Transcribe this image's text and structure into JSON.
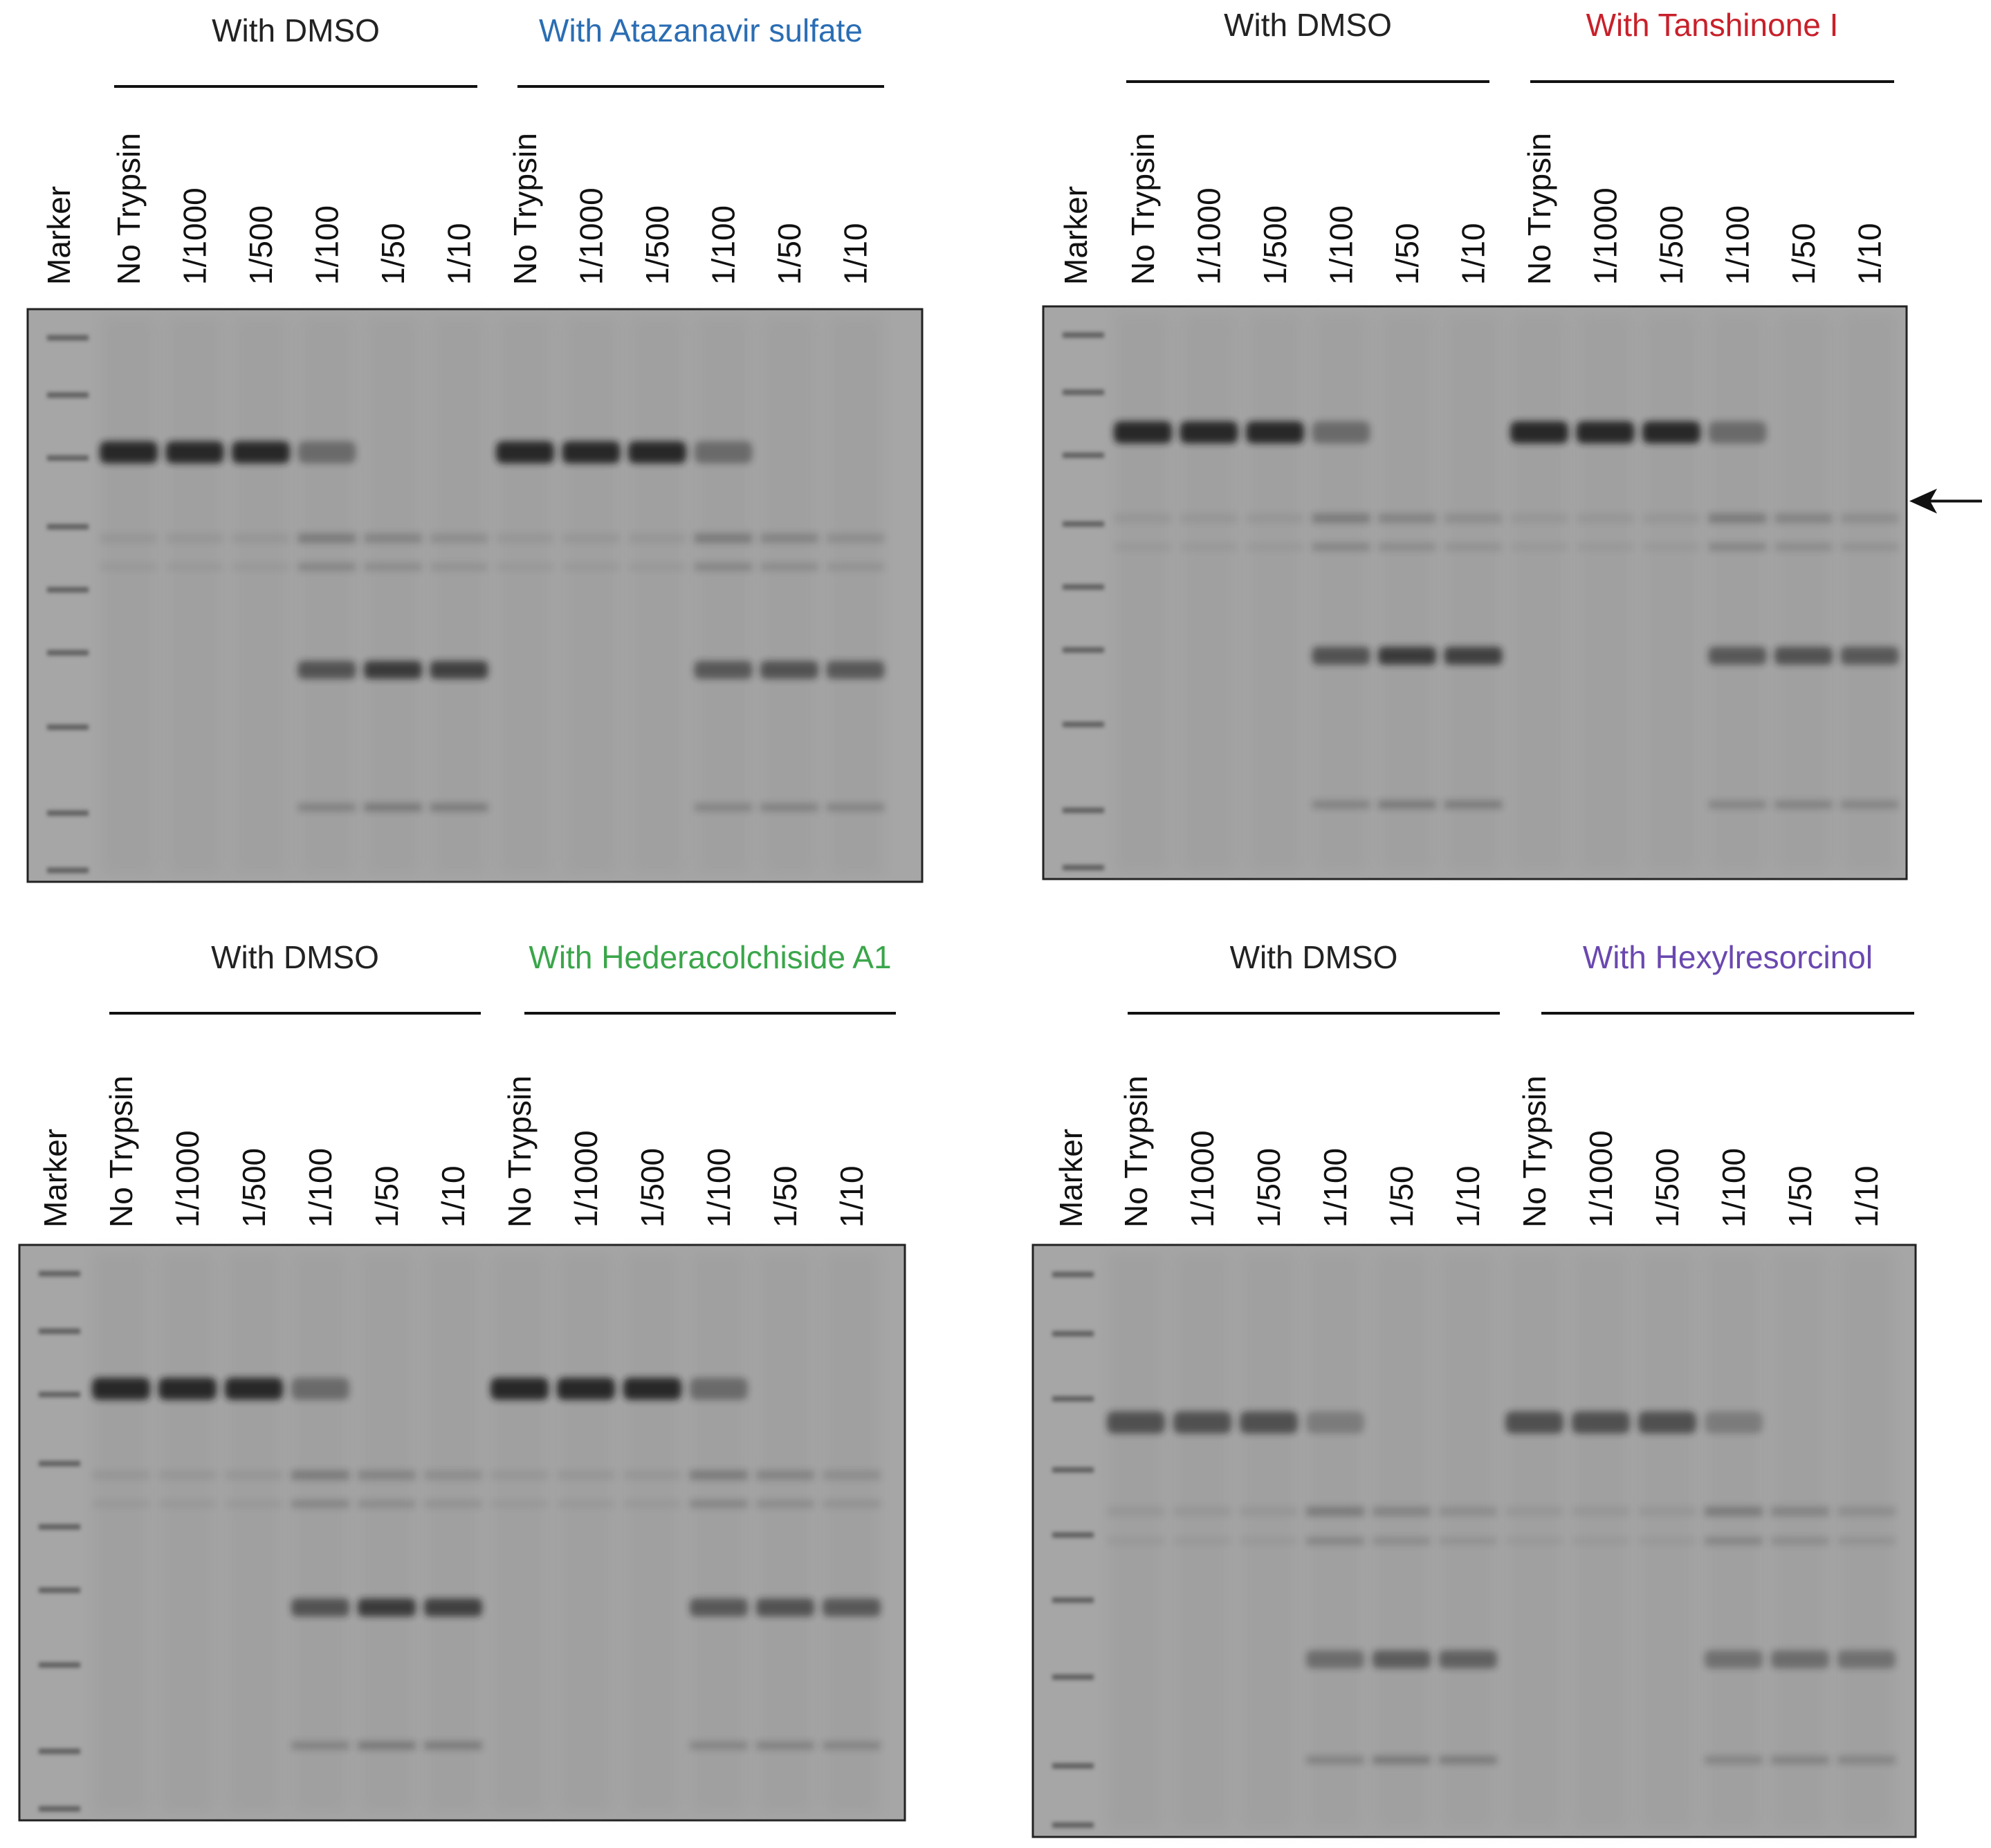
{
  "lane_labels": [
    "Marker",
    "No Trypsin",
    "1/1000",
    "1/500",
    "1/100",
    "1/50",
    "1/10",
    "No Trypsin",
    "1/1000",
    "1/500",
    "1/100",
    "1/50",
    "1/10"
  ],
  "colors": {
    "black": "#222222",
    "blue": "#2a6db4",
    "red": "#c8202a",
    "green": "#3aa64a",
    "purple": "#6a48b0",
    "gel_bg": "#a6a6a6",
    "band": "#1c1c1c"
  },
  "panels": [
    {
      "control_label": "With DMSO",
      "compound_label": "With  Atazanavir sulfate",
      "compound_color": "#2a6db4",
      "arrow": false
    },
    {
      "control_label": "With DMSO",
      "compound_label": "With Tanshinone I",
      "compound_color": "#c8202a",
      "arrow": true
    },
    {
      "control_label": "With DMSO",
      "compound_label": "With  Hederacolchiside A1",
      "compound_color": "#3aa64a",
      "arrow": false
    },
    {
      "control_label": "With DMSO",
      "compound_label": "With  Hexylresorcinol",
      "compound_color": "#6a48b0",
      "arrow": false
    }
  ]
}
